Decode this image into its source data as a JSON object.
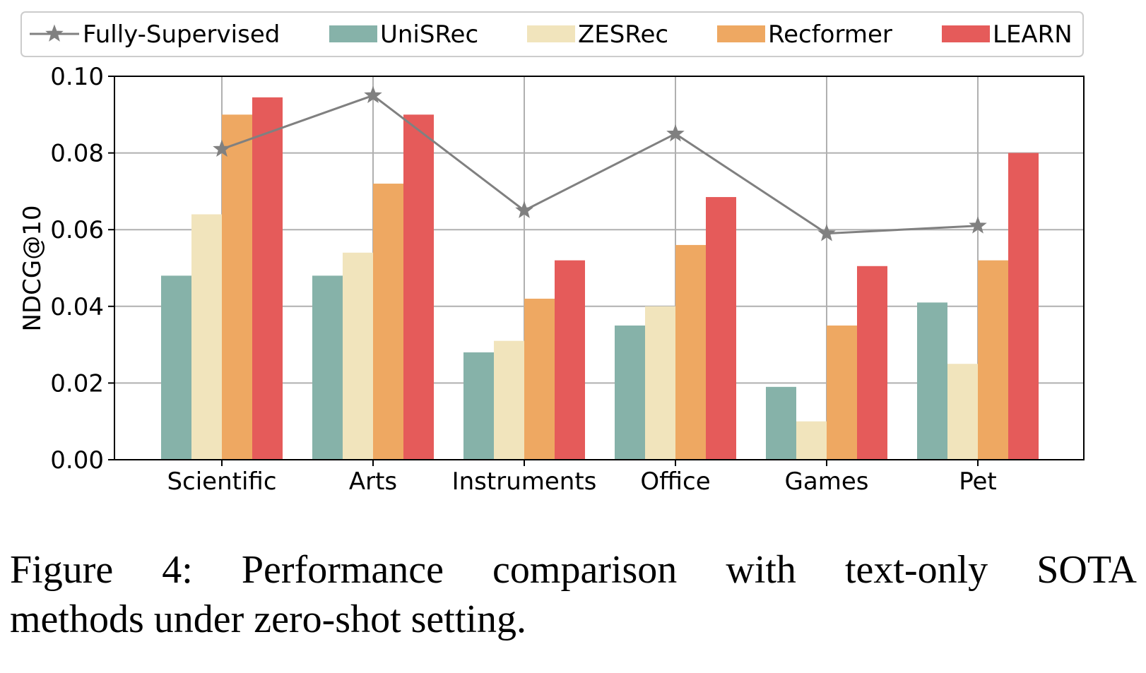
{
  "chart_data": {
    "type": "bar",
    "ylabel": "NDCG@10",
    "xlabel": "",
    "ylim": [
      0,
      0.1
    ],
    "yticks": [
      "0.00",
      "0.02",
      "0.04",
      "0.06",
      "0.08",
      "0.10"
    ],
    "grid": true,
    "legend_position": "top",
    "categories": [
      "Scientific",
      "Arts",
      "Instruments",
      "Office",
      "Games",
      "Pet"
    ],
    "line_series": {
      "name": "Fully-Supervised",
      "values": [
        0.081,
        0.095,
        0.065,
        0.085,
        0.059,
        0.061
      ],
      "color": "#808080",
      "marker": "star"
    },
    "series": [
      {
        "name": "UniSRec",
        "values": [
          0.048,
          0.048,
          0.028,
          0.035,
          0.019,
          0.041
        ],
        "color": "#86b2a9"
      },
      {
        "name": "ZESRec",
        "values": [
          0.064,
          0.054,
          0.031,
          0.04,
          0.01,
          0.025
        ],
        "color": "#f1e4bc"
      },
      {
        "name": "Recformer",
        "values": [
          0.09,
          0.072,
          0.042,
          0.056,
          0.035,
          0.052
        ],
        "color": "#eea862"
      },
      {
        "name": "LEARN",
        "values": [
          0.0945,
          0.09,
          0.052,
          0.0685,
          0.0505,
          0.08
        ],
        "color": "#e55b5a"
      }
    ]
  },
  "caption": {
    "line1": "Figure 4: Performance comparison with text-only SOTA",
    "line2": "methods under zero-shot setting."
  }
}
